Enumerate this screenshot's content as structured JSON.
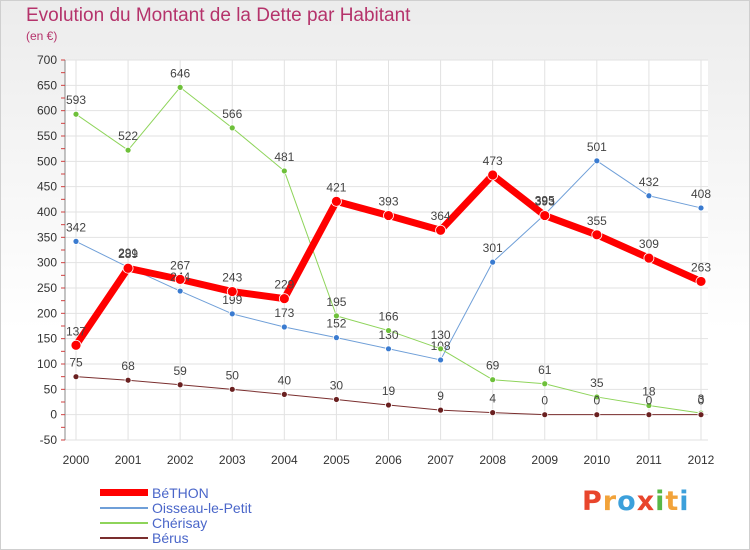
{
  "title": "Evolution du Montant de la Dette par Habitant",
  "subtitle": "(en €)",
  "logo": {
    "letters": [
      "P",
      "r",
      "o",
      "x",
      "i",
      "t",
      "i"
    ],
    "colors": [
      "#e8452c",
      "#f2a33a",
      "#3ca0db",
      "#e8452c",
      "#59b847",
      "#f2a33a",
      "#3ca0db"
    ]
  },
  "chart_data": {
    "type": "line",
    "title": "Evolution du Montant de la Dette par Habitant",
    "subtitle": "(en €)",
    "xlabel": "",
    "ylabel": "",
    "ylim": [
      -50,
      700
    ],
    "yticks": [
      -50,
      0,
      50,
      100,
      150,
      200,
      250,
      300,
      350,
      400,
      450,
      500,
      550,
      600,
      650,
      700
    ],
    "categories": [
      "2000",
      "2001",
      "2002",
      "2003",
      "2004",
      "2005",
      "2006",
      "2007",
      "2008",
      "2009",
      "2010",
      "2011",
      "2012"
    ],
    "grid": true,
    "legend_position": "bottom-left",
    "series": [
      {
        "name": "Oisseau-le-Petit",
        "color": "#6f9fd8",
        "marker": "#3a7bd0",
        "width": 1,
        "values": [
          342,
          291,
          244,
          199,
          173,
          152,
          130,
          108,
          301,
          395,
          501,
          432,
          408
        ]
      },
      {
        "name": "Chérisay",
        "color": "#8ed45a",
        "marker": "#6ec03a",
        "width": 1,
        "values": [
          593,
          522,
          646,
          566,
          481,
          195,
          166,
          130,
          69,
          61,
          35,
          18,
          3
        ]
      },
      {
        "name": "Bérus",
        "color": "#7a2e2e",
        "marker": "#6a2020",
        "width": 1,
        "values": [
          75,
          68,
          59,
          50,
          40,
          30,
          19,
          9,
          4,
          0,
          0,
          0,
          0
        ]
      },
      {
        "name": "BéTHON",
        "color": "#ff0000",
        "marker": "#ff0000",
        "width": 7,
        "values": [
          137,
          289,
          267,
          243,
          229,
          421,
          393,
          364,
          473,
          393,
          355,
          309,
          263
        ]
      }
    ],
    "legend_order": [
      "BéTHON",
      "Oisseau-le-Petit",
      "Chérisay",
      "Bérus"
    ]
  }
}
